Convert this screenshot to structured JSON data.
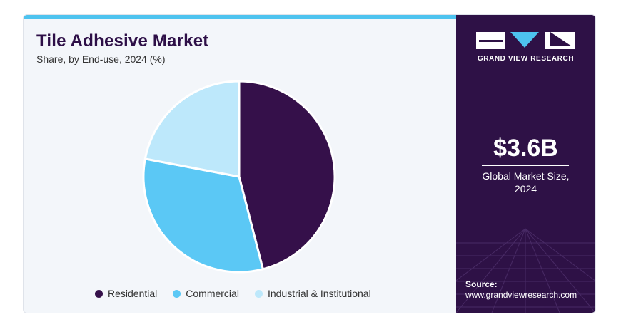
{
  "header": {
    "title": "Tile Adhesive Market",
    "subtitle": "Share, by End-use, 2024 (%)"
  },
  "chart_data": {
    "type": "pie",
    "title": "Tile Adhesive Market",
    "subtitle": "Share, by End-use, 2024 (%)",
    "categories": [
      "Residential",
      "Commercial",
      "Industrial & Institutional"
    ],
    "values": [
      46,
      32,
      22
    ],
    "colors": [
      "#35104a",
      "#5bc8f5",
      "#bde8fb"
    ],
    "legend_position": "bottom"
  },
  "sidebar": {
    "brand": "GRAND VIEW RESEARCH",
    "market_value": "$3.6B",
    "market_label_line1": "Global Market Size,",
    "market_label_line2": "2024",
    "source_label": "Source:",
    "source_url": "www.grandviewresearch.com"
  }
}
